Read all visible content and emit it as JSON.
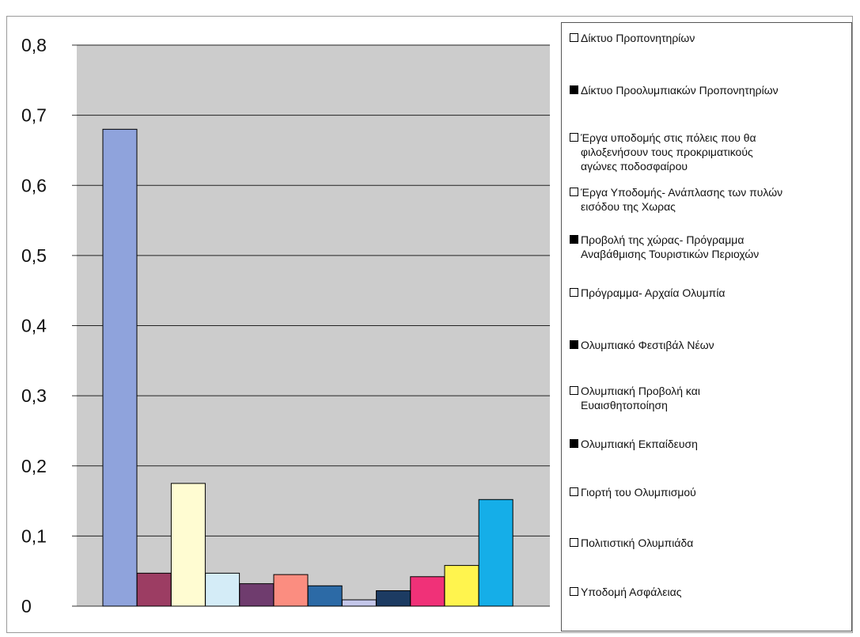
{
  "chart_data": {
    "type": "bar",
    "title": "",
    "xlabel": "",
    "ylabel": "",
    "ylim": [
      0,
      0.8
    ],
    "y_ticks": [
      "0",
      "0,1",
      "0,2",
      "0,3",
      "0,4",
      "0,5",
      "0,6",
      "0,7",
      "0,8"
    ],
    "grid": true,
    "legend_position": "right",
    "series": [
      {
        "name": "Δίκτυο Προπονητηρίων",
        "value": 0.68,
        "color": "#8fa3dc"
      },
      {
        "name": "Δίκτυο Προολυμπιακών Προπονητηρίων",
        "value": 0.047,
        "color": "#9c3d63"
      },
      {
        "name": "Έργα υποδομής στις πόλεις που θα φιλοξενήσουν τους προκριματικούς αγώνες ποδοσφαίρου",
        "value": 0.175,
        "color": "#fffcd2"
      },
      {
        "name": "Έργα Υποδομής- Ανάπλασης των πυλών εισόδου της Χωρας",
        "value": 0.047,
        "color": "#d4ecf7"
      },
      {
        "name": "Προβολή της χώρας- Πρόγραμμα Αναβάθμισης Τουριστικών Περιοχών",
        "value": 0.032,
        "color": "#6f3c6e"
      },
      {
        "name": "Πρόγραμμα- Αρχαία Ολυμπία",
        "value": 0.045,
        "color": "#fb8d80"
      },
      {
        "name": "Ολυμπιακό Φεστιβάλ Νέων",
        "value": 0.029,
        "color": "#2c6aa6"
      },
      {
        "name": "Ολυμπιακή Προβολή και Ευαισθητοποίηση",
        "value": 0.009,
        "color": "#c4c7ea"
      },
      {
        "name": "Ολυμπιακή Εκπαίδευση",
        "value": 0.022,
        "color": "#1c3b62"
      },
      {
        "name": "Γιορτή του Ολυμπισμού",
        "value": 0.042,
        "color": "#f03178"
      },
      {
        "name": "Πολιτιστική Ολυμπιάδα",
        "value": 0.058,
        "color": "#fff44e"
      },
      {
        "name": "Υποδομή Ασφάλειας",
        "value": 0.152,
        "color": "#15aee8"
      }
    ],
    "legend": [
      {
        "lines": [
          "Δίκτυο Προπονητηρίων"
        ],
        "swatch": "hollow"
      },
      {
        "lines": [
          "Δίκτυο Προολυμπιακών Προπονητηρίων"
        ],
        "swatch": "filled"
      },
      {
        "lines": [
          "Έργα υποδομής στις πόλεις που θα",
          "φιλοξενήσουν τους προκριματικούς",
          "αγώνες ποδοσφαίρου"
        ],
        "swatch": "hollow"
      },
      {
        "lines": [
          "Έργα Υποδομής- Ανάπλασης των πυλών",
          "εισόδου της Χωρας"
        ],
        "swatch": "hollow"
      },
      {
        "lines": [
          "Προβολή της χώρας- Πρόγραμμα",
          "Αναβάθμισης Τουριστικών Περιοχών"
        ],
        "swatch": "filled"
      },
      {
        "lines": [
          "Πρόγραμμα- Αρχαία Ολυμπία"
        ],
        "swatch": "hollow"
      },
      {
        "lines": [
          "Ολυμπιακό Φεστιβάλ Νέων"
        ],
        "swatch": "filled"
      },
      {
        "lines": [
          "Ολυμπιακή Προβολή και",
          "Ευαισθητοποίηση"
        ],
        "swatch": "hollow"
      },
      {
        "lines": [
          "Ολυμπιακή Εκπαίδευση"
        ],
        "swatch": "filled"
      },
      {
        "lines": [
          "Γιορτή του Ολυμπισμού"
        ],
        "swatch": "hollow"
      },
      {
        "lines": [
          "Πολιτιστική Ολυμπιάδα"
        ],
        "swatch": "hollow"
      },
      {
        "lines": [
          "Υποδομή Ασφάλειας"
        ],
        "swatch": "hollow"
      }
    ]
  }
}
